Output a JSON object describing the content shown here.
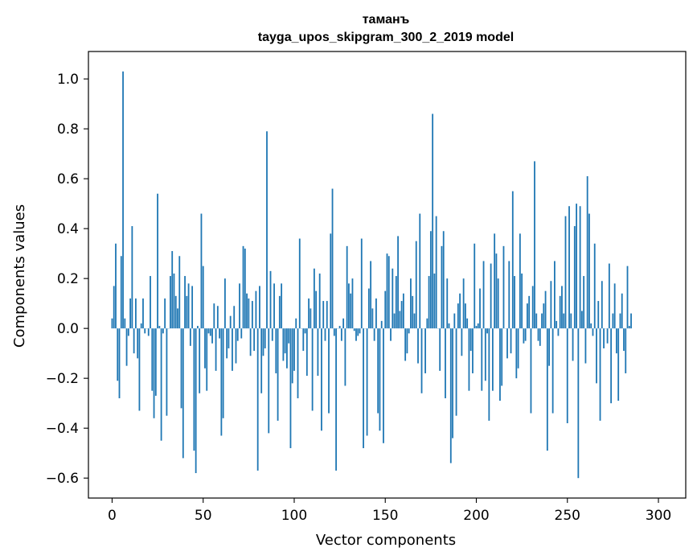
{
  "chart_data": {
    "type": "bar",
    "title_line1": "таманъ",
    "title_line2": "tayga_upos_skipgram_300_2_2019 model",
    "xlabel": "Vector components",
    "ylabel": "Components values",
    "xlim": [
      -13,
      315
    ],
    "ylim": [
      -0.68,
      1.11
    ],
    "x_ticks": [
      0,
      50,
      100,
      150,
      200,
      250,
      300
    ],
    "x_tick_labels": [
      "0",
      "50",
      "100",
      "150",
      "200",
      "250",
      "300"
    ],
    "y_ticks": [
      -0.6,
      -0.4,
      -0.2,
      0.0,
      0.2,
      0.4,
      0.6,
      0.8,
      1.0
    ],
    "y_tick_labels": [
      "−0.6",
      "−0.4",
      "−0.2",
      "0.0",
      "0.2",
      "0.4",
      "0.6",
      "0.8",
      "1.0"
    ],
    "bar_color": "#1f77b4",
    "values": [
      0.04,
      0.17,
      0.34,
      -0.21,
      -0.28,
      0.29,
      1.03,
      0.04,
      -0.15,
      -0.03,
      0.12,
      0.41,
      -0.1,
      0.12,
      -0.12,
      -0.33,
      0.02,
      0.12,
      -0.02,
      0.0,
      -0.03,
      0.21,
      -0.25,
      -0.36,
      -0.27,
      0.54,
      0.01,
      -0.45,
      -0.02,
      0.12,
      -0.35,
      0.0,
      0.21,
      0.31,
      0.22,
      0.13,
      0.08,
      0.29,
      -0.32,
      -0.52,
      0.21,
      0.13,
      0.18,
      -0.07,
      0.17,
      -0.49,
      -0.58,
      0.01,
      -0.26,
      0.46,
      0.25,
      -0.16,
      -0.25,
      -0.02,
      -0.03,
      -0.06,
      0.1,
      -0.17,
      0.09,
      -0.04,
      -0.43,
      -0.36,
      0.2,
      -0.12,
      -0.08,
      0.05,
      -0.17,
      0.09,
      -0.14,
      -0.05,
      0.18,
      -0.04,
      0.33,
      0.32,
      0.14,
      0.12,
      -0.11,
      0.11,
      -0.09,
      0.15,
      -0.57,
      0.17,
      -0.26,
      -0.11,
      -0.08,
      0.79,
      -0.42,
      0.23,
      -0.05,
      0.18,
      -0.18,
      -0.37,
      0.13,
      0.18,
      -0.13,
      -0.1,
      -0.16,
      -0.06,
      -0.48,
      -0.22,
      -0.17,
      0.04,
      -0.28,
      0.36,
      0.0,
      -0.09,
      -0.02,
      -0.19,
      0.12,
      0.08,
      -0.33,
      0.24,
      0.15,
      -0.19,
      0.22,
      -0.41,
      0.11,
      -0.05,
      0.11,
      -0.34,
      0.38,
      0.56,
      -0.03,
      -0.57,
      0.0,
      0.01,
      -0.05,
      0.04,
      -0.23,
      0.33,
      0.18,
      0.14,
      0.2,
      -0.01,
      -0.05,
      -0.03,
      -0.02,
      0.36,
      -0.48,
      0.0,
      -0.43,
      0.16,
      0.27,
      0.08,
      -0.05,
      0.12,
      -0.34,
      -0.41,
      0.03,
      -0.46,
      0.15,
      0.3,
      0.29,
      -0.05,
      0.24,
      0.06,
      0.21,
      0.37,
      0.07,
      0.11,
      0.14,
      -0.13,
      -0.1,
      -0.02,
      0.2,
      0.13,
      0.06,
      0.35,
      -0.14,
      0.46,
      -0.26,
      0.0,
      -0.18,
      0.04,
      0.21,
      0.39,
      0.86,
      0.22,
      0.45,
      0.0,
      -0.17,
      0.33,
      0.39,
      -0.28,
      0.2,
      0.02,
      -0.54,
      -0.44,
      0.06,
      -0.35,
      0.1,
      0.14,
      -0.11,
      0.2,
      0.1,
      0.04,
      -0.25,
      -0.09,
      -0.18,
      0.34,
      0.01,
      0.02,
      0.16,
      -0.25,
      0.27,
      -0.21,
      -0.02,
      -0.37,
      0.26,
      -0.25,
      0.38,
      0.3,
      0.2,
      -0.29,
      -0.23,
      0.33,
      0.0,
      -0.12,
      0.27,
      -0.1,
      0.55,
      0.21,
      -0.2,
      -0.16,
      0.38,
      0.22,
      -0.06,
      -0.05,
      0.1,
      0.13,
      -0.34,
      0.17,
      0.67,
      0.06,
      -0.05,
      -0.07,
      0.06,
      0.1,
      0.15,
      -0.49,
      -0.15,
      0.19,
      -0.34,
      0.27,
      0.03,
      -0.03,
      0.13,
      0.17,
      0.06,
      0.45,
      -0.38,
      0.49,
      0.06,
      -0.13,
      0.41,
      0.5,
      -0.6,
      0.49,
      0.07,
      0.21,
      -0.14,
      0.61,
      0.46,
      0.02,
      -0.03,
      0.34,
      -0.22,
      0.11,
      -0.37,
      0.19,
      -0.08,
      0.0,
      -0.06,
      0.26,
      -0.3,
      0.06,
      0.18,
      -0.1,
      -0.29,
      0.06,
      0.14,
      -0.09,
      -0.18,
      0.25,
      0.01,
      0.06
    ]
  }
}
